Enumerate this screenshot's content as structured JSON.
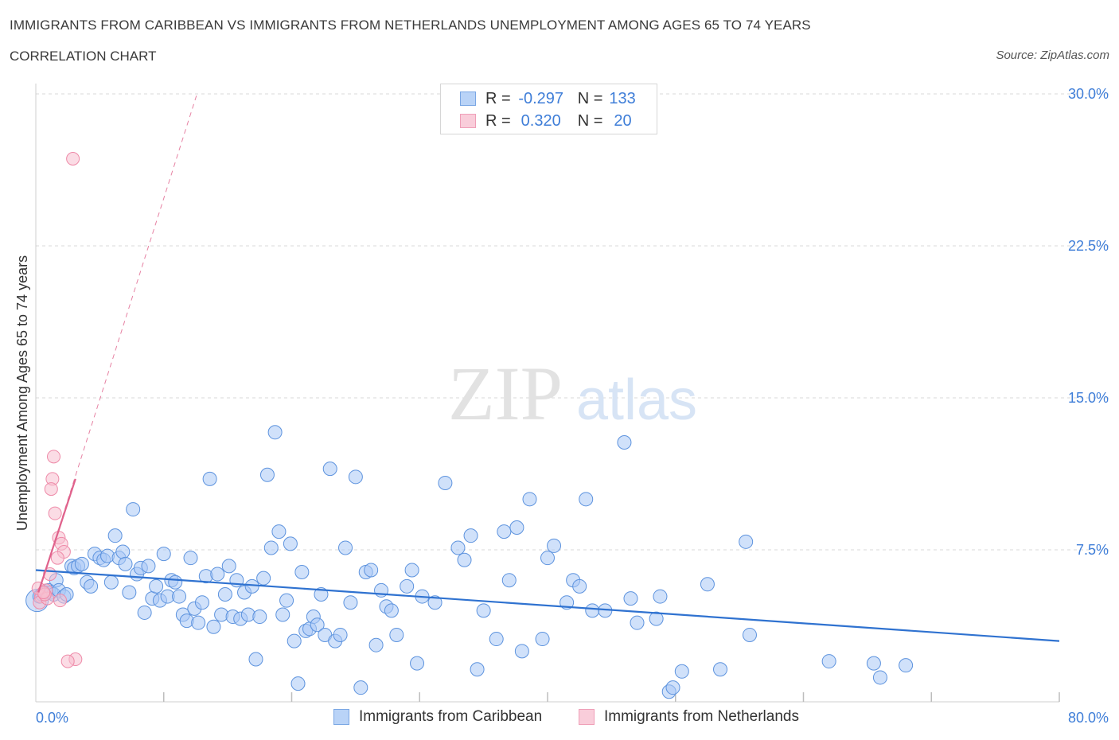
{
  "header": {
    "title": "IMMIGRANTS FROM CARIBBEAN VS IMMIGRANTS FROM NETHERLANDS UNEMPLOYMENT AMONG AGES 65 TO 74 YEARS",
    "subtitle": "CORRELATION CHART",
    "source": "Source: ZipAtlas.com"
  },
  "watermark": {
    "zip": "ZIP",
    "atlas": "atlas"
  },
  "legend": {
    "rows": [
      {
        "r_label": "R =",
        "r_value": "-0.297",
        "n_label": "N =",
        "n_value": "133"
      },
      {
        "r_label": "R =",
        "r_value": "0.320",
        "n_label": "N =",
        "n_value": "20"
      }
    ]
  },
  "colors": {
    "caribbean_fill": "#a9c8f5",
    "caribbean_stroke": "#5d93de",
    "caribbean_line": "#2f72d0",
    "netherlands_fill": "#f7bfcf",
    "netherlands_stroke": "#ee8aa8",
    "netherlands_line": "#e0628c",
    "tick_label": "#3f7ed8",
    "grid": "#d8d8d8"
  },
  "chart_data": {
    "type": "scatter",
    "title": "IMMIGRANTS FROM CARIBBEAN VS IMMIGRANTS FROM NETHERLANDS UNEMPLOYMENT AMONG AGES 65 TO 74 YEARS",
    "xlabel": "",
    "ylabel": "Unemployment Among Ages 65 to 74 years",
    "xlim": [
      0,
      80
    ],
    "ylim": [
      0,
      30
    ],
    "x_tick_labels": [
      "0.0%",
      "80.0%"
    ],
    "y_ticks": [
      7.5,
      15.0,
      22.5,
      30.0
    ],
    "y_tick_labels": [
      "7.5%",
      "15.0%",
      "22.5%",
      "30.0%"
    ],
    "grid": true,
    "legend_position": "bottom",
    "series": [
      {
        "name": "Immigrants from Caribbean",
        "trend": {
          "x": [
            0,
            80
          ],
          "y": [
            6.5,
            3.0
          ]
        },
        "points": [
          [
            0.3,
            5.2
          ],
          [
            0.5,
            5.3
          ],
          [
            0.8,
            5.4
          ],
          [
            1.0,
            5.5
          ],
          [
            1.2,
            5.4
          ],
          [
            1.4,
            5.3
          ],
          [
            1.6,
            6.0
          ],
          [
            1.8,
            5.5
          ],
          [
            2.2,
            5.2
          ],
          [
            2.4,
            5.3
          ],
          [
            2.8,
            6.7
          ],
          [
            3.0,
            6.6
          ],
          [
            3.3,
            6.7
          ],
          [
            3.6,
            6.8
          ],
          [
            4.0,
            5.9
          ],
          [
            4.3,
            5.7
          ],
          [
            4.6,
            7.3
          ],
          [
            5.0,
            7.1
          ],
          [
            5.3,
            7.0
          ],
          [
            5.6,
            7.2
          ],
          [
            5.9,
            5.9
          ],
          [
            6.2,
            8.2
          ],
          [
            6.5,
            7.1
          ],
          [
            6.8,
            7.4
          ],
          [
            7.0,
            6.8
          ],
          [
            7.3,
            5.4
          ],
          [
            7.6,
            9.5
          ],
          [
            7.9,
            6.3
          ],
          [
            8.2,
            6.6
          ],
          [
            8.5,
            4.4
          ],
          [
            8.8,
            6.7
          ],
          [
            9.1,
            5.1
          ],
          [
            9.4,
            5.7
          ],
          [
            9.7,
            5.0
          ],
          [
            10.0,
            7.3
          ],
          [
            10.3,
            5.2
          ],
          [
            10.6,
            6.0
          ],
          [
            10.9,
            5.9
          ],
          [
            11.2,
            5.2
          ],
          [
            11.5,
            4.3
          ],
          [
            11.8,
            4.0
          ],
          [
            12.1,
            7.1
          ],
          [
            12.4,
            4.6
          ],
          [
            12.7,
            3.9
          ],
          [
            13.0,
            4.9
          ],
          [
            13.3,
            6.2
          ],
          [
            13.6,
            11.0
          ],
          [
            13.9,
            3.7
          ],
          [
            14.2,
            6.3
          ],
          [
            14.5,
            4.3
          ],
          [
            14.8,
            5.3
          ],
          [
            15.1,
            6.7
          ],
          [
            15.4,
            4.2
          ],
          [
            15.7,
            6.0
          ],
          [
            16.0,
            4.1
          ],
          [
            16.3,
            5.4
          ],
          [
            16.6,
            4.3
          ],
          [
            16.9,
            5.7
          ],
          [
            17.2,
            2.1
          ],
          [
            17.5,
            4.2
          ],
          [
            17.8,
            6.1
          ],
          [
            18.1,
            11.2
          ],
          [
            18.4,
            7.6
          ],
          [
            18.7,
            13.3
          ],
          [
            19.0,
            8.4
          ],
          [
            19.3,
            4.3
          ],
          [
            19.6,
            5.0
          ],
          [
            19.9,
            7.8
          ],
          [
            20.2,
            3.0
          ],
          [
            20.5,
            0.9
          ],
          [
            20.8,
            6.4
          ],
          [
            21.1,
            3.5
          ],
          [
            21.4,
            3.6
          ],
          [
            21.7,
            4.2
          ],
          [
            22.0,
            3.8
          ],
          [
            22.3,
            5.3
          ],
          [
            22.6,
            3.3
          ],
          [
            23.0,
            11.5
          ],
          [
            23.4,
            3.0
          ],
          [
            23.8,
            3.3
          ],
          [
            24.2,
            7.6
          ],
          [
            24.6,
            4.9
          ],
          [
            25.0,
            11.1
          ],
          [
            25.4,
            0.7
          ],
          [
            25.8,
            6.4
          ],
          [
            26.2,
            6.5
          ],
          [
            26.6,
            2.8
          ],
          [
            27.0,
            5.5
          ],
          [
            27.4,
            4.7
          ],
          [
            27.8,
            4.5
          ],
          [
            28.2,
            3.3
          ],
          [
            29.0,
            5.7
          ],
          [
            29.4,
            6.5
          ],
          [
            29.8,
            1.9
          ],
          [
            30.2,
            5.2
          ],
          [
            31.2,
            4.9
          ],
          [
            32.0,
            10.8
          ],
          [
            33.0,
            7.6
          ],
          [
            33.5,
            7.0
          ],
          [
            34.0,
            8.2
          ],
          [
            34.5,
            1.6
          ],
          [
            35.0,
            4.5
          ],
          [
            36.0,
            3.1
          ],
          [
            36.6,
            8.4
          ],
          [
            37.0,
            6.0
          ],
          [
            37.6,
            8.6
          ],
          [
            38.0,
            2.5
          ],
          [
            38.6,
            10.0
          ],
          [
            39.6,
            3.1
          ],
          [
            40.0,
            7.1
          ],
          [
            40.5,
            7.7
          ],
          [
            41.5,
            4.9
          ],
          [
            42.0,
            6.0
          ],
          [
            42.5,
            5.7
          ],
          [
            43.0,
            10.0
          ],
          [
            43.5,
            4.5
          ],
          [
            44.5,
            4.5
          ],
          [
            46.0,
            12.8
          ],
          [
            46.5,
            5.1
          ],
          [
            47.0,
            3.9
          ],
          [
            48.5,
            4.1
          ],
          [
            48.8,
            5.2
          ],
          [
            49.5,
            0.5
          ],
          [
            49.8,
            0.7
          ],
          [
            50.5,
            1.5
          ],
          [
            52.5,
            5.8
          ],
          [
            53.5,
            1.6
          ],
          [
            55.5,
            7.9
          ],
          [
            55.8,
            3.3
          ],
          [
            62.0,
            2.0
          ],
          [
            65.5,
            1.9
          ],
          [
            66.0,
            1.2
          ],
          [
            68.0,
            1.8
          ]
        ],
        "cluster_big": [
          0.1,
          5.0
        ]
      },
      {
        "name": "Immigrants from Netherlands",
        "trend": {
          "x": [
            0.2,
            3.1
          ],
          "y": [
            5.4,
            11.0
          ]
        },
        "trend_extended": {
          "x": [
            0.2,
            12.6
          ],
          "y": [
            5.4,
            30.0
          ]
        },
        "points": [
          [
            2.9,
            26.8
          ],
          [
            1.4,
            12.1
          ],
          [
            1.3,
            11.0
          ],
          [
            1.2,
            10.5
          ],
          [
            1.5,
            9.3
          ],
          [
            1.8,
            8.1
          ],
          [
            2.0,
            7.8
          ],
          [
            2.2,
            7.4
          ],
          [
            1.7,
            7.1
          ],
          [
            1.1,
            6.3
          ],
          [
            0.8,
            5.5
          ],
          [
            0.4,
            5.2
          ],
          [
            0.2,
            5.6
          ],
          [
            0.3,
            4.9
          ],
          [
            0.9,
            5.1
          ],
          [
            1.9,
            5.0
          ],
          [
            0.7,
            5.3
          ],
          [
            3.1,
            2.1
          ],
          [
            2.5,
            2.0
          ],
          [
            0.6,
            5.4
          ]
        ]
      }
    ]
  },
  "bottom_legend": {
    "caribbean": "Immigrants from Caribbean",
    "netherlands": "Immigrants from Netherlands"
  }
}
